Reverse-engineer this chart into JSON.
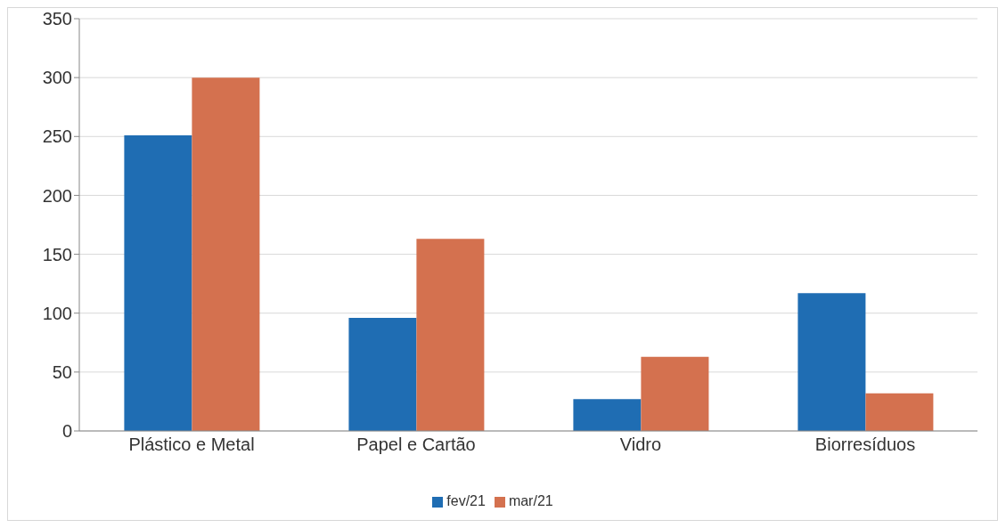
{
  "chart_data": {
    "type": "bar",
    "categories": [
      "Plástico e Metal",
      "Papel e Cartão",
      "Vidro",
      "Biorresíduos"
    ],
    "series": [
      {
        "name": "fev/21",
        "color": "#1f6db3",
        "values": [
          251,
          96,
          27,
          117
        ]
      },
      {
        "name": "mar/21",
        "color": "#d4714f",
        "values": [
          300,
          163,
          63,
          32
        ]
      }
    ],
    "ylim": [
      0,
      350
    ],
    "yticks": [
      0,
      50,
      100,
      150,
      200,
      250,
      300,
      350
    ],
    "grid": "y",
    "legend": "bottom"
  }
}
